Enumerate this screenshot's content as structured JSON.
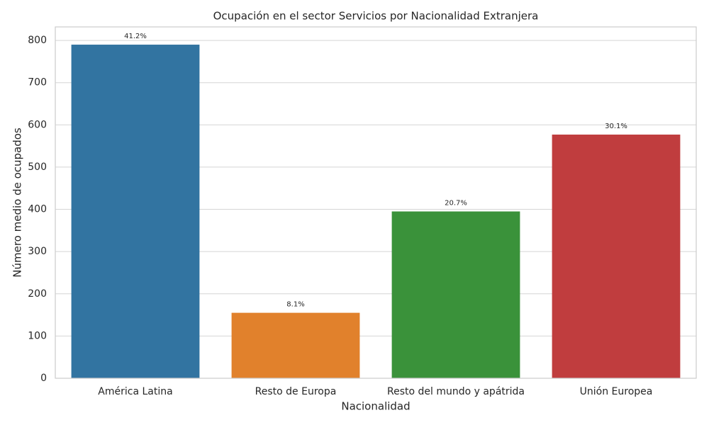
{
  "chart_data": {
    "type": "bar",
    "title": "Ocupación en el sector Servicios por Nacionalidad Extranjera",
    "x_label": "Nacionalidad",
    "y_label": "Número medio de ocupados",
    "categories": [
      "América Latina",
      "Resto de Europa",
      "Resto del mundo y apátrida",
      "Unión Europea"
    ],
    "values": [
      790,
      155,
      395,
      577
    ],
    "colors": [
      "#3274a1",
      "#e1812c",
      "#3a923a",
      "#c03d3e"
    ],
    "bar_annotations": [
      "41.2%",
      "8.1%",
      "20.7%",
      "30.1%"
    ],
    "ylim": [
      0,
      832
    ],
    "yticks": [
      0,
      100,
      200,
      300,
      400,
      500,
      600,
      700,
      800
    ],
    "grid": true
  }
}
